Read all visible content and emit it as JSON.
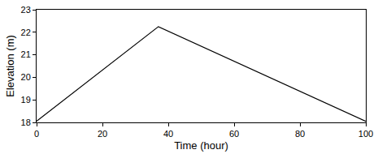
{
  "chart_data": {
    "type": "line",
    "x_label": "Time (hour)",
    "y_label": "Elevation (m)",
    "x": [
      0,
      37,
      100
    ],
    "values": [
      18.05,
      22.25,
      18.05
    ],
    "color": "#000000",
    "xlim": [
      0,
      100
    ],
    "xticks": [
      0,
      20,
      40,
      60,
      80,
      100
    ],
    "ylim": [
      18,
      23
    ],
    "yticks": [
      18,
      19,
      20,
      21,
      22,
      23
    ],
    "grid": false
  }
}
